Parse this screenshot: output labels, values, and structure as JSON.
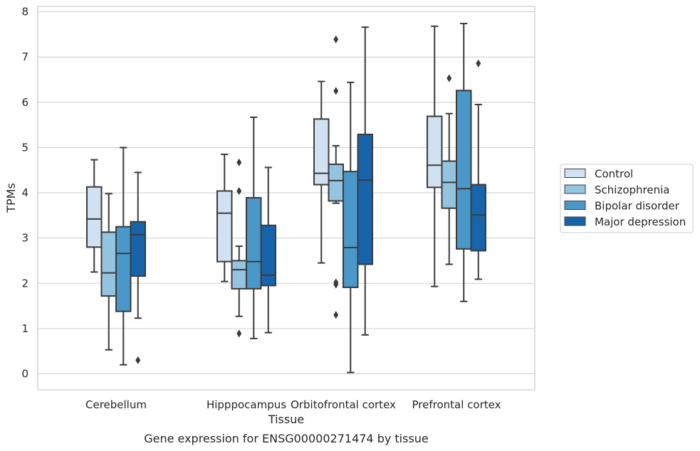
{
  "chart_data": {
    "type": "boxplot",
    "title": "",
    "caption": "Gene expression for ENSG00000271474 by tissue",
    "xlabel": "Tissue",
    "ylabel": "TPMs",
    "ylim": [
      -0.35,
      8.15
    ],
    "y_ticks": [
      0,
      1,
      2,
      3,
      4,
      5,
      6,
      7,
      8
    ],
    "grid": "horizontal",
    "legend_position": "right",
    "categories": [
      "Cerebellum",
      "Hipppocampus",
      "Orbitofrontal cortex",
      "Prefrontal cortex"
    ],
    "series": [
      {
        "name": "Control",
        "color": "#d0e1f2",
        "boxes": [
          {
            "whislo": 2.25,
            "q1": 2.8,
            "med": 3.42,
            "q3": 4.13,
            "whishi": 4.73,
            "fliers": []
          },
          {
            "whislo": 2.04,
            "q1": 2.48,
            "med": 3.55,
            "q3": 4.04,
            "whishi": 4.85,
            "fliers": []
          },
          {
            "whislo": 2.45,
            "q1": 4.18,
            "med": 4.43,
            "q3": 5.63,
            "whishi": 6.46,
            "fliers": []
          },
          {
            "whislo": 1.93,
            "q1": 4.12,
            "med": 4.61,
            "q3": 5.69,
            "whishi": 7.68,
            "fliers": []
          }
        ]
      },
      {
        "name": "Schizophrenia",
        "color": "#94c4df",
        "boxes": [
          {
            "whislo": 0.53,
            "q1": 1.72,
            "med": 2.23,
            "q3": 3.13,
            "whishi": 3.98,
            "fliers": []
          },
          {
            "whislo": 1.27,
            "q1": 1.88,
            "med": 2.3,
            "q3": 2.5,
            "whishi": 2.82,
            "fliers": [
              4.04,
              4.67,
              0.89
            ]
          },
          {
            "whislo": 3.77,
            "q1": 3.82,
            "med": 4.27,
            "q3": 4.63,
            "whishi": 5.04,
            "fliers": [
              6.25,
              7.39,
              2.02,
              1.97,
              1.3
            ]
          },
          {
            "whislo": 2.42,
            "q1": 3.66,
            "med": 4.23,
            "q3": 4.7,
            "whishi": 5.75,
            "fliers": [
              6.53
            ]
          }
        ]
      },
      {
        "name": "Bipolar disorder",
        "color": "#4a98c9",
        "boxes": [
          {
            "whislo": 0.2,
            "q1": 1.38,
            "med": 2.66,
            "q3": 3.25,
            "whishi": 5.0,
            "fliers": []
          },
          {
            "whislo": 0.78,
            "q1": 1.88,
            "med": 2.48,
            "q3": 3.89,
            "whishi": 5.67,
            "fliers": []
          },
          {
            "whislo": 0.03,
            "q1": 1.91,
            "med": 2.79,
            "q3": 4.47,
            "whishi": 6.44,
            "fliers": []
          },
          {
            "whislo": 1.6,
            "q1": 2.76,
            "med": 4.09,
            "q3": 6.26,
            "whishi": 7.74,
            "fliers": []
          }
        ]
      },
      {
        "name": "Major depression",
        "color": "#1764ab",
        "boxes": [
          {
            "whislo": 1.23,
            "q1": 2.16,
            "med": 3.07,
            "q3": 3.36,
            "whishi": 4.45,
            "fliers": [
              0.3
            ]
          },
          {
            "whislo": 0.91,
            "q1": 1.95,
            "med": 2.18,
            "q3": 3.28,
            "whishi": 4.56,
            "fliers": []
          },
          {
            "whislo": 0.86,
            "q1": 2.42,
            "med": 4.28,
            "q3": 5.29,
            "whishi": 7.66,
            "fliers": []
          },
          {
            "whislo": 2.09,
            "q1": 2.72,
            "med": 3.51,
            "q3": 4.18,
            "whishi": 5.95,
            "fliers": [
              6.86
            ]
          }
        ]
      }
    ]
  }
}
